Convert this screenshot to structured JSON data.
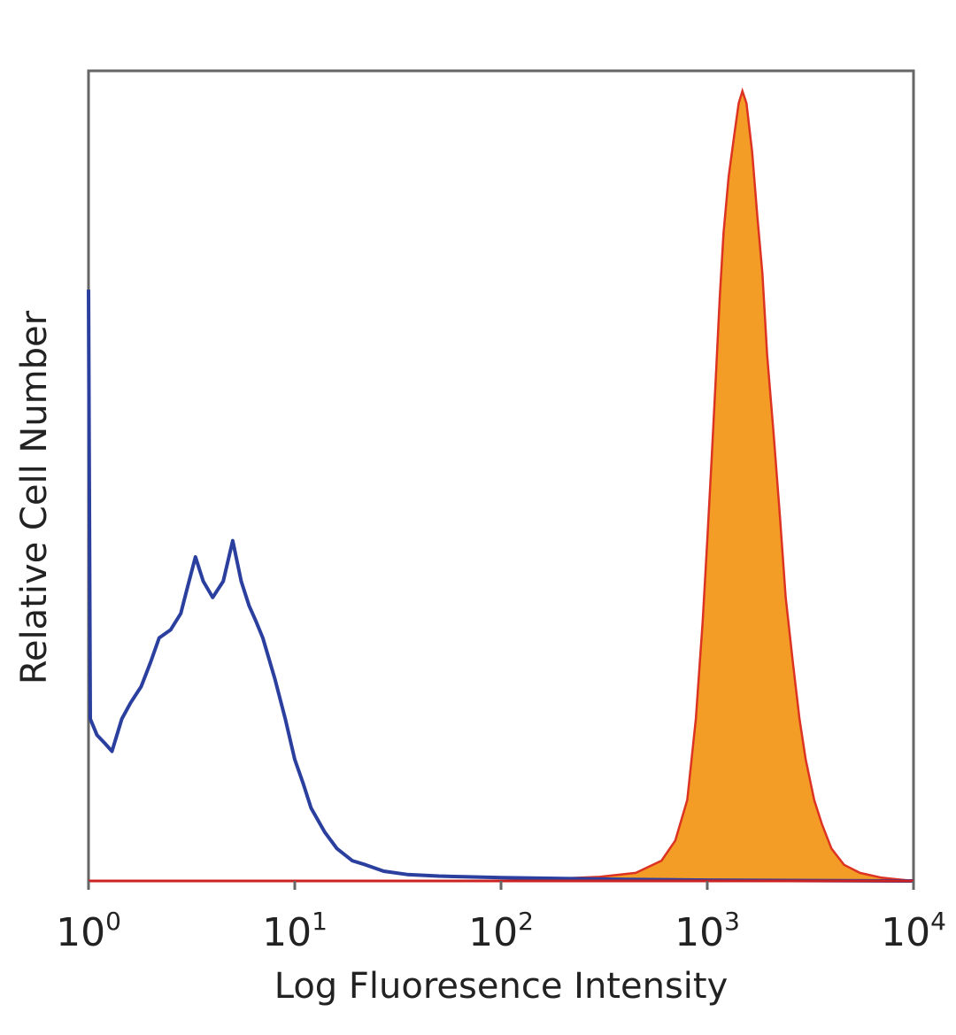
{
  "chart_data": {
    "type": "area",
    "xlabel": "Log Fluoresence Intensity",
    "ylabel": "Relative Cell Number",
    "x_scale": "log",
    "xlim": [
      1,
      10000
    ],
    "ylim": [
      0,
      1
    ],
    "grid": false,
    "legend": "none",
    "x_ticks": [
      {
        "base": "10",
        "exp": "0",
        "value": 1
      },
      {
        "base": "10",
        "exp": "1",
        "value": 10
      },
      {
        "base": "10",
        "exp": "2",
        "value": 100
      },
      {
        "base": "10",
        "exp": "3",
        "value": 1000
      },
      {
        "base": "10",
        "exp": "4",
        "value": 10000
      }
    ],
    "series": [
      {
        "style": "outline",
        "color": "#2b3f9e",
        "points": [
          [
            1,
            0.73
          ],
          [
            1.02,
            0.2
          ],
          [
            1.1,
            0.18
          ],
          [
            1.2,
            0.17
          ],
          [
            1.3,
            0.16
          ],
          [
            1.45,
            0.2
          ],
          [
            1.6,
            0.22
          ],
          [
            1.8,
            0.24
          ],
          [
            2.0,
            0.27
          ],
          [
            2.2,
            0.3
          ],
          [
            2.5,
            0.31
          ],
          [
            2.8,
            0.33
          ],
          [
            3.0,
            0.36
          ],
          [
            3.3,
            0.4
          ],
          [
            3.6,
            0.37
          ],
          [
            4.0,
            0.35
          ],
          [
            4.5,
            0.37
          ],
          [
            5.0,
            0.42
          ],
          [
            5.5,
            0.37
          ],
          [
            6.0,
            0.34
          ],
          [
            6.5,
            0.32
          ],
          [
            7.0,
            0.3
          ],
          [
            8.0,
            0.25
          ],
          [
            9.0,
            0.2
          ],
          [
            10,
            0.15
          ],
          [
            11,
            0.12
          ],
          [
            12,
            0.09
          ],
          [
            14,
            0.06
          ],
          [
            16,
            0.04
          ],
          [
            19,
            0.025
          ],
          [
            22,
            0.02
          ],
          [
            27,
            0.012
          ],
          [
            35,
            0.008
          ],
          [
            50,
            0.006
          ],
          [
            70,
            0.005
          ],
          [
            100,
            0.004
          ],
          [
            200,
            0.003
          ],
          [
            400,
            0.002
          ],
          [
            1000,
            0.001
          ],
          [
            10000,
            0
          ]
        ]
      },
      {
        "style": "filled",
        "color": "#dd3322",
        "fill": "#f39c26",
        "points": [
          [
            1,
            0
          ],
          [
            100,
            0
          ],
          [
            300,
            0.005
          ],
          [
            450,
            0.01
          ],
          [
            600,
            0.025
          ],
          [
            700,
            0.05
          ],
          [
            800,
            0.1
          ],
          [
            880,
            0.2
          ],
          [
            950,
            0.32
          ],
          [
            1000,
            0.42
          ],
          [
            1050,
            0.52
          ],
          [
            1100,
            0.62
          ],
          [
            1150,
            0.72
          ],
          [
            1200,
            0.8
          ],
          [
            1270,
            0.87
          ],
          [
            1350,
            0.92
          ],
          [
            1420,
            0.96
          ],
          [
            1480,
            0.975
          ],
          [
            1550,
            0.96
          ],
          [
            1650,
            0.9
          ],
          [
            1750,
            0.82
          ],
          [
            1850,
            0.75
          ],
          [
            1950,
            0.65
          ],
          [
            2100,
            0.55
          ],
          [
            2250,
            0.45
          ],
          [
            2400,
            0.35
          ],
          [
            2600,
            0.27
          ],
          [
            2800,
            0.2
          ],
          [
            3000,
            0.15
          ],
          [
            3300,
            0.1
          ],
          [
            3600,
            0.07
          ],
          [
            4000,
            0.04
          ],
          [
            4600,
            0.02
          ],
          [
            5500,
            0.01
          ],
          [
            7000,
            0.004
          ],
          [
            10000,
            0
          ]
        ]
      }
    ]
  }
}
